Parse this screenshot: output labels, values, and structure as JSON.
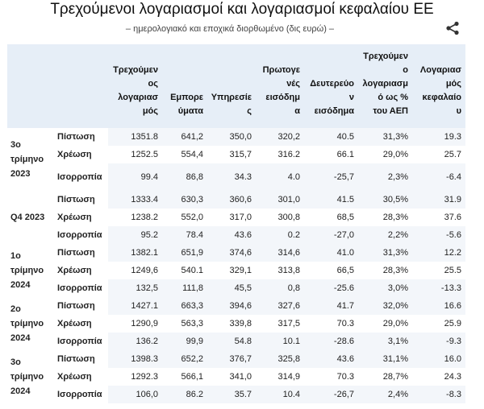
{
  "title": "Τρεχούμενοι λογαριασμοί και λογαριασμοί κεφαλαίου ΕΕ",
  "subtitle": "– ημερολογιακό και εποχικά διορθωμένο (δις ευρώ) –",
  "share_icon": "share-icon",
  "colors": {
    "header_bg": "#e6eef7",
    "stripe": "#f3f6fa"
  },
  "columns": [
    "Τρεχούμεν ος λογαριασ μός",
    "Εμπορε ύματα",
    "Υπηρεσίε ς",
    "Πρωτογε νές εισόδημ α",
    "Δευτερεύο ν εισόδημα",
    "Τρεχούμεν ο λογαριασμ ό ως % του ΑΕΠ",
    "Λογαριασ μός κεφαλαίο υ"
  ],
  "groups": [
    {
      "period": "3ο τρίμηνο 2023",
      "rows": [
        {
          "kind": "Πίστωση",
          "values": [
            "1351.8",
            "641,2",
            "350,0",
            "320,2",
            "40.5",
            "31,3%",
            "19.3"
          ]
        },
        {
          "kind": "Χρέωση",
          "values": [
            "1252.5",
            "554,4",
            "315,7",
            "316.2",
            "66.1",
            "29,0%",
            "25.7"
          ]
        },
        {
          "kind": "Ισορροπία",
          "values": [
            "99.4",
            "86,8",
            "34.3",
            "4.0",
            "-25,7",
            "2,3%",
            "-6.4"
          ]
        }
      ]
    },
    {
      "period": "Q4 2023",
      "rows": [
        {
          "kind": "Πίστωση",
          "values": [
            "1333.4",
            "630,3",
            "360,6",
            "301,0",
            "41.5",
            "30,5%",
            "31.9"
          ]
        },
        {
          "kind": "Χρέωση",
          "values": [
            "1238.2",
            "552,0",
            "317,0",
            "300,8",
            "68,5",
            "28,3%",
            "37.6"
          ]
        },
        {
          "kind": "Ισορροπία",
          "values": [
            "95.2",
            "78.4",
            "43.6",
            "0.2",
            "-27,0",
            "2,2%",
            "-5.6"
          ]
        }
      ]
    },
    {
      "period": "1ο τρίμηνο 2024",
      "rows": [
        {
          "kind": "Πίστωση",
          "values": [
            "1382.1",
            "651,9",
            "374,6",
            "314,6",
            "41.0",
            "31,3%",
            "12.2"
          ]
        },
        {
          "kind": "Χρέωση",
          "values": [
            "1249,6",
            "540.1",
            "329,1",
            "313,8",
            "66,5",
            "28,3%",
            "25.5"
          ]
        },
        {
          "kind": "Ισορροπία",
          "values": [
            "132,5",
            "111,8",
            "45,5",
            "0,8",
            "-25.6",
            "3,0%",
            "-13.3"
          ]
        }
      ]
    },
    {
      "period": "2ο τρίμηνο 2024",
      "rows": [
        {
          "kind": "Πίστωση",
          "values": [
            "1427.1",
            "663,3",
            "394,6",
            "327,6",
            "41.7",
            "32,0%",
            "16.6"
          ]
        },
        {
          "kind": "Χρέωση",
          "values": [
            "1290,9",
            "563,3",
            "339,8",
            "317,5",
            "70.3",
            "29,0%",
            "25.9"
          ]
        },
        {
          "kind": "Ισορροπία",
          "values": [
            "136.2",
            "99,9",
            "54.8",
            "10.1",
            "-28.6",
            "3,1%",
            "-9.3"
          ]
        }
      ]
    },
    {
      "period": "3ο τρίμηνο 2024",
      "rows": [
        {
          "kind": "Πίστωση",
          "values": [
            "1398.3",
            "652,2",
            "376,7",
            "325,8",
            "43.6",
            "31,1%",
            "16.0"
          ]
        },
        {
          "kind": "Χρέωση",
          "values": [
            "1292.3",
            "566,1",
            "341,0",
            "314,9",
            "70.3",
            "28,7%",
            "24.3"
          ]
        },
        {
          "kind": "Ισορροπία",
          "values": [
            "106,0",
            "86.2",
            "35.7",
            "10.4",
            "-26,7",
            "2,4%",
            "-8.3"
          ]
        }
      ]
    }
  ]
}
